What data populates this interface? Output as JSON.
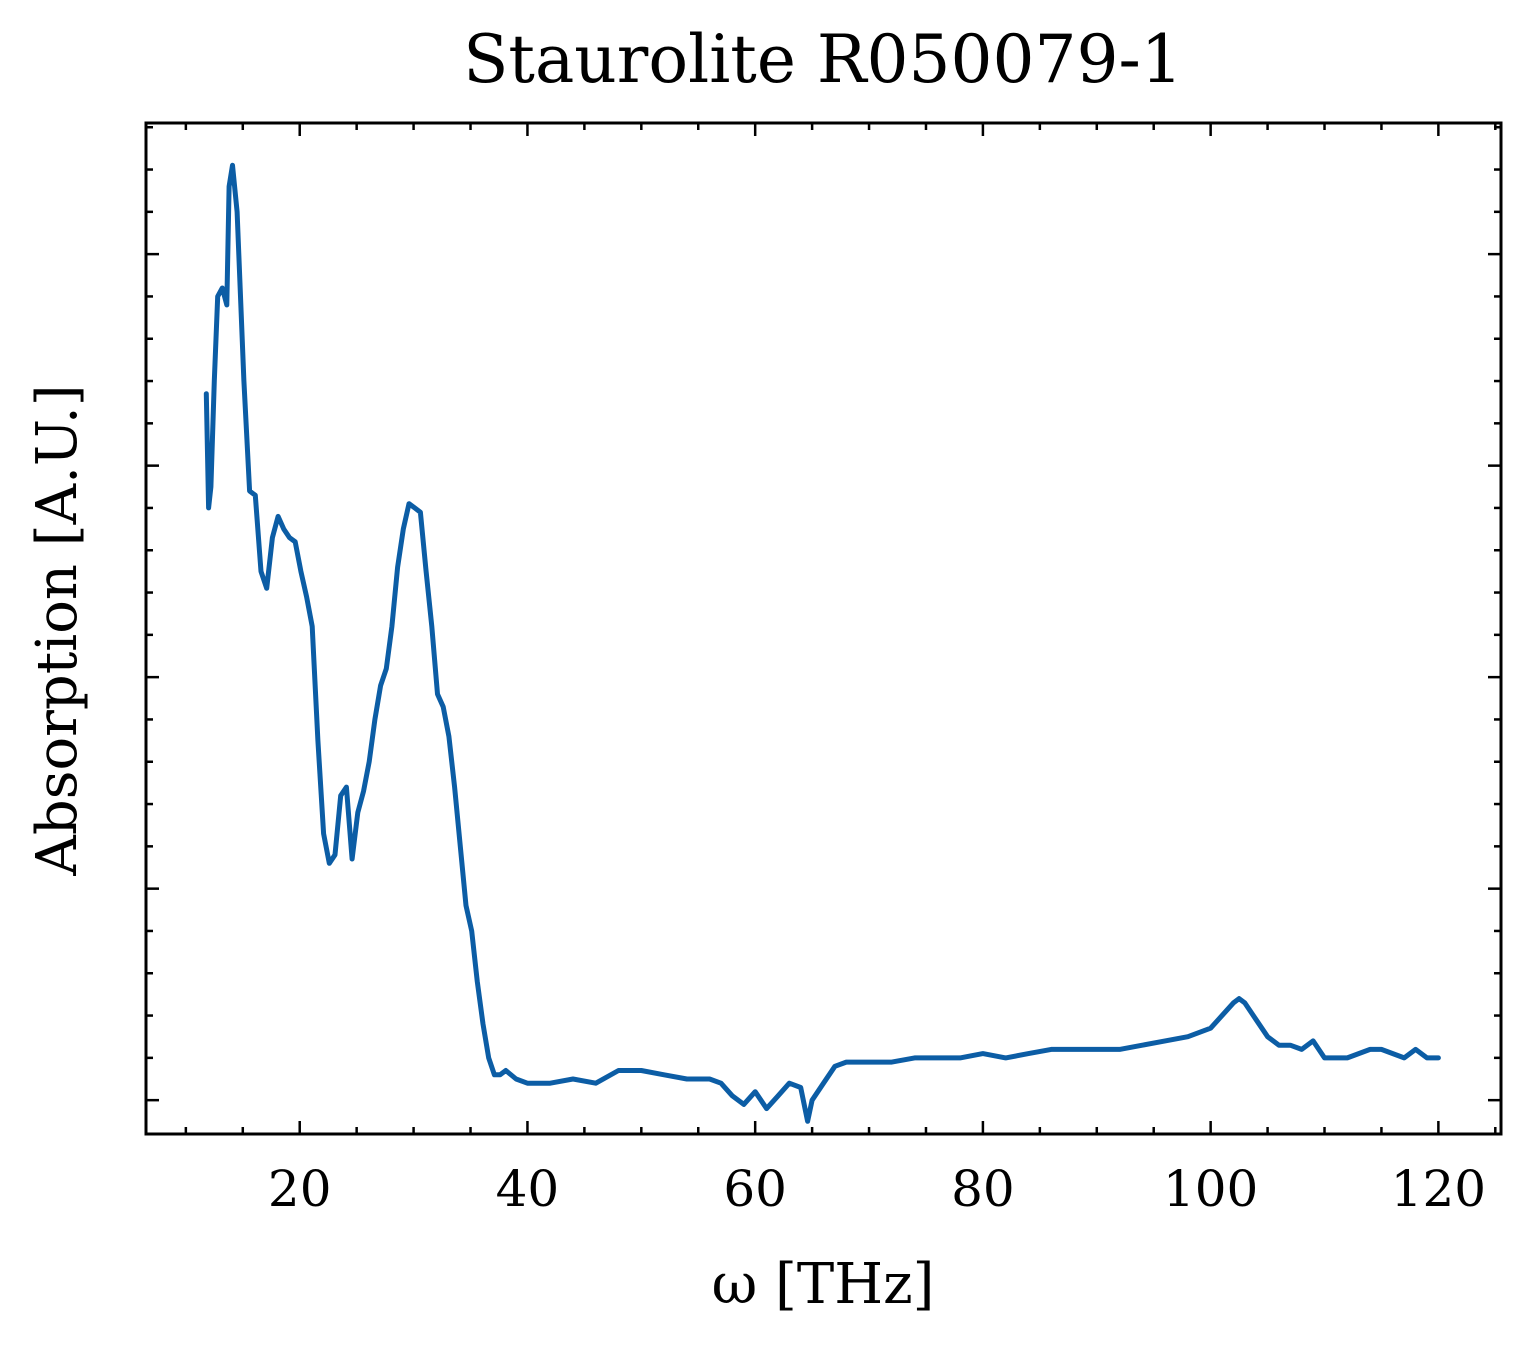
{
  "chart_data": {
    "type": "line",
    "title": "Staurolite R050079-1",
    "xlabel": "ω [THz]",
    "ylabel": "Absorption [A.U.]",
    "xlim": [
      6.5,
      125.5
    ],
    "ylim": [
      -0.08,
      2.31
    ],
    "x_ticks": [
      20,
      40,
      60,
      80,
      100,
      120
    ],
    "x_minor_step": 5,
    "y_ticks": [
      0,
      0.5,
      1.0,
      1.5,
      2.0
    ],
    "y_tick_labels_shown": false,
    "y_minor_step": 0.1,
    "grid": false,
    "tick_direction": "in",
    "line_color": "#0C5DA5",
    "series": [
      {
        "x": [
          11.8,
          12.0,
          12.2,
          12.5,
          12.8,
          13.2,
          13.6,
          13.8,
          14.1,
          14.5,
          15.1,
          15.6,
          16.1,
          16.6,
          17.1,
          17.6,
          18.1,
          18.6,
          19.1,
          19.6,
          20.1,
          20.6,
          21.1,
          21.6,
          22.1,
          22.6,
          23.1,
          23.6,
          24.1,
          24.6,
          25.1,
          25.6,
          26.1,
          26.6,
          27.1,
          27.6,
          28.1,
          28.6,
          29.1,
          29.6,
          30.1,
          30.6,
          31.1,
          31.6,
          32.1,
          32.6,
          33.1,
          33.6,
          34.1,
          34.6,
          35.1,
          35.6,
          36.1,
          36.6,
          37.1,
          37.6,
          38.1,
          39,
          40,
          42,
          44,
          46,
          48,
          50,
          52,
          54,
          56,
          57,
          58,
          59,
          60,
          61,
          62,
          63,
          64,
          64.6,
          65,
          66,
          67,
          68,
          70,
          72,
          74,
          76,
          78,
          80,
          82,
          84,
          86,
          88,
          90,
          92,
          94,
          96,
          98,
          100,
          101,
          102,
          102.5,
          103,
          104,
          105,
          106,
          107,
          108,
          109,
          110,
          111,
          112,
          113,
          114,
          115,
          116,
          117,
          118,
          119,
          120
        ],
        "y": [
          1.67,
          1.4,
          1.45,
          1.7,
          1.9,
          1.92,
          1.88,
          2.16,
          2.21,
          2.1,
          1.7,
          1.44,
          1.43,
          1.25,
          1.21,
          1.33,
          1.38,
          1.35,
          1.33,
          1.32,
          1.25,
          1.19,
          1.12,
          0.85,
          0.63,
          0.56,
          0.58,
          0.72,
          0.74,
          0.57,
          0.68,
          0.73,
          0.8,
          0.9,
          0.98,
          1.02,
          1.12,
          1.26,
          1.35,
          1.41,
          1.4,
          1.39,
          1.25,
          1.12,
          0.96,
          0.93,
          0.86,
          0.74,
          0.6,
          0.46,
          0.4,
          0.28,
          0.18,
          0.1,
          0.06,
          0.06,
          0.07,
          0.05,
          0.04,
          0.04,
          0.05,
          0.04,
          0.07,
          0.07,
          0.06,
          0.05,
          0.05,
          0.04,
          0.01,
          -0.01,
          0.02,
          -0.02,
          0.01,
          0.04,
          0.03,
          -0.05,
          0.0,
          0.04,
          0.08,
          0.09,
          0.09,
          0.09,
          0.1,
          0.1,
          0.1,
          0.11,
          0.1,
          0.11,
          0.12,
          0.12,
          0.12,
          0.12,
          0.13,
          0.14,
          0.15,
          0.17,
          0.2,
          0.23,
          0.24,
          0.23,
          0.19,
          0.15,
          0.13,
          0.13,
          0.12,
          0.14,
          0.1,
          0.1,
          0.1,
          0.11,
          0.12,
          0.12,
          0.11,
          0.1,
          0.12,
          0.1,
          0.1
        ]
      }
    ]
  }
}
